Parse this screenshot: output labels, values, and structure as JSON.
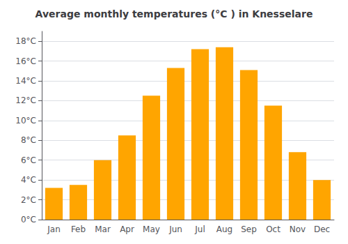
{
  "chart_data": {
    "type": "bar",
    "title": "Average monthly temperatures (°C ) in Knesselare",
    "categories": [
      "Jan",
      "Feb",
      "Mar",
      "Apr",
      "May",
      "Jun",
      "Jul",
      "Aug",
      "Sep",
      "Oct",
      "Nov",
      "Dec"
    ],
    "values": [
      3.2,
      3.5,
      6.0,
      8.5,
      12.5,
      15.3,
      17.2,
      17.4,
      15.1,
      11.5,
      6.8,
      4.0
    ],
    "color": "#FFA500",
    "ylim": [
      0,
      19
    ],
    "yticks": [
      {
        "value": 0,
        "label": "0°C"
      },
      {
        "value": 2,
        "label": "2°C"
      },
      {
        "value": 4,
        "label": "4°C"
      },
      {
        "value": 6,
        "label": "6°C"
      },
      {
        "value": 8,
        "label": "8°C"
      },
      {
        "value": 10,
        "label": "10°C"
      },
      {
        "value": 12,
        "label": "12°C"
      },
      {
        "value": 14,
        "label": "14°C"
      },
      {
        "value": 16,
        "label": "16°C"
      },
      {
        "value": 18,
        "label": "18°C"
      }
    ],
    "grid": true
  }
}
